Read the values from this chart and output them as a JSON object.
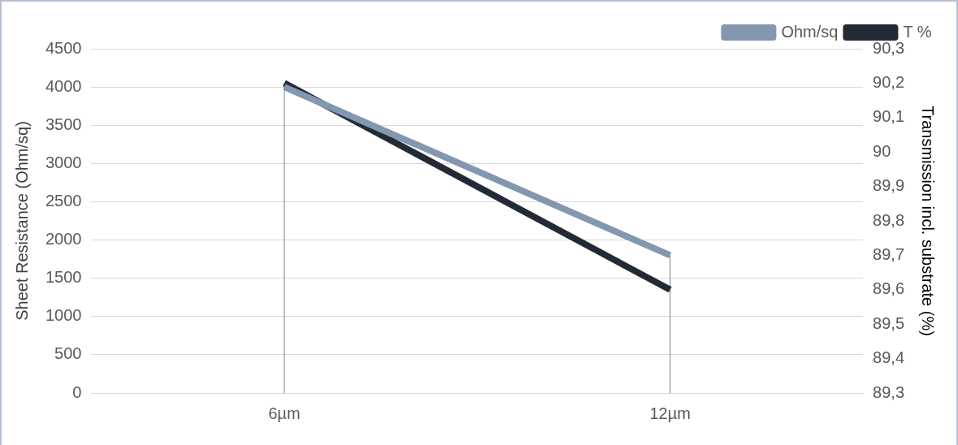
{
  "chart_data": {
    "type": "line",
    "categories": [
      "6µm",
      "12µm"
    ],
    "series": [
      {
        "name": "Ohm/sq",
        "color": "#8497b0",
        "values": [
          4000,
          1800
        ]
      },
      {
        "name": "T %",
        "color": "#222a35",
        "values": [
          90.2,
          89.6
        ],
        "axis": "y2"
      }
    ],
    "ylabel": "Sheet Resistance (Ohm/sq)",
    "y2label": "Transmission incl. substrate (%)",
    "ylim": [
      0,
      4500
    ],
    "yticks": [
      0,
      500,
      1000,
      1500,
      2000,
      2500,
      3000,
      3500,
      4000,
      4500
    ],
    "y2lim": [
      89.3,
      90.3
    ],
    "y2ticks": [
      {
        "value": 89.3,
        "label": "89,3"
      },
      {
        "value": 89.4,
        "label": "89,4"
      },
      {
        "value": 89.5,
        "label": "89,5"
      },
      {
        "value": 89.6,
        "label": "89,6"
      },
      {
        "value": 89.7,
        "label": "89,7"
      },
      {
        "value": 89.8,
        "label": "89,8"
      },
      {
        "value": 89.9,
        "label": "89,9"
      },
      {
        "value": 90,
        "label": "90"
      },
      {
        "value": 90.1,
        "label": "90,1"
      },
      {
        "value": 90.2,
        "label": "90,2"
      },
      {
        "value": 90.3,
        "label": "90,3"
      }
    ],
    "ref_lines": [
      {
        "axis": "x",
        "value": "6µm",
        "color": "#a6a6a6"
      },
      {
        "axis": "x",
        "value": "12µm",
        "color": "#a6a6a6"
      }
    ],
    "grid": "y",
    "legend": "top right",
    "marker": "none",
    "line_style": "solid"
  }
}
